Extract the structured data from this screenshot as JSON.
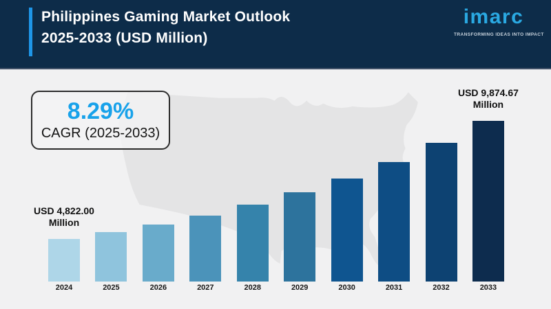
{
  "header": {
    "title_line1": "Philippines Gaming Market Outlook",
    "title_line2": "2025-2033 (USD Million)",
    "logo": {
      "name": "imarc",
      "tagline": "TRANSFORMING IDEAS INTO IMPACT"
    },
    "colors": {
      "background": "#0d2c49",
      "accent_bar": "#1e96e8",
      "logo": "#2aa9e2",
      "title_text": "#ffffff"
    }
  },
  "callout": {
    "cagr_value": "8.29%",
    "cagr_label": "CAGR (2025-2033)",
    "value_color": "#18a2ea"
  },
  "chart_data": {
    "type": "bar",
    "title": "Philippines Gaming Market Outlook 2025-2033 (USD Million)",
    "unit": "USD Million",
    "categories": [
      "2024",
      "2025",
      "2026",
      "2027",
      "2028",
      "2029",
      "2030",
      "2031",
      "2032",
      "2033"
    ],
    "values": [
      4822.0,
      5221.74,
      5654.63,
      6123.39,
      6631.02,
      7180.74,
      7776.02,
      8420.65,
      9118.72,
      9874.67
    ],
    "values_labeled_in_image": [
      0,
      9
    ],
    "visible_value_labels": [
      {
        "index": 0,
        "line1": "USD 4,822.00",
        "line2": "Million"
      },
      {
        "index": 9,
        "line1": "USD 9,874.67",
        "line2": "Million"
      }
    ],
    "cagr": "8.29%",
    "bar_colors": [
      "#aed6e8",
      "#8fc4dd",
      "#69abcb",
      "#4b93ba",
      "#3583ab",
      "#2d739d",
      "#0f5590",
      "#0e4d84",
      "#0d4272",
      "#0d2c4e"
    ],
    "axis": {
      "x_labels_visible": true,
      "y_axis_visible": false,
      "gridlines": false,
      "baseline_truncated": true
    },
    "background_motif": "usa-map-silhouette",
    "legend": "none"
  },
  "body_colors": {
    "background": "#f1f1f2",
    "map_fill": "#e4e4e5",
    "text": "#111111"
  }
}
